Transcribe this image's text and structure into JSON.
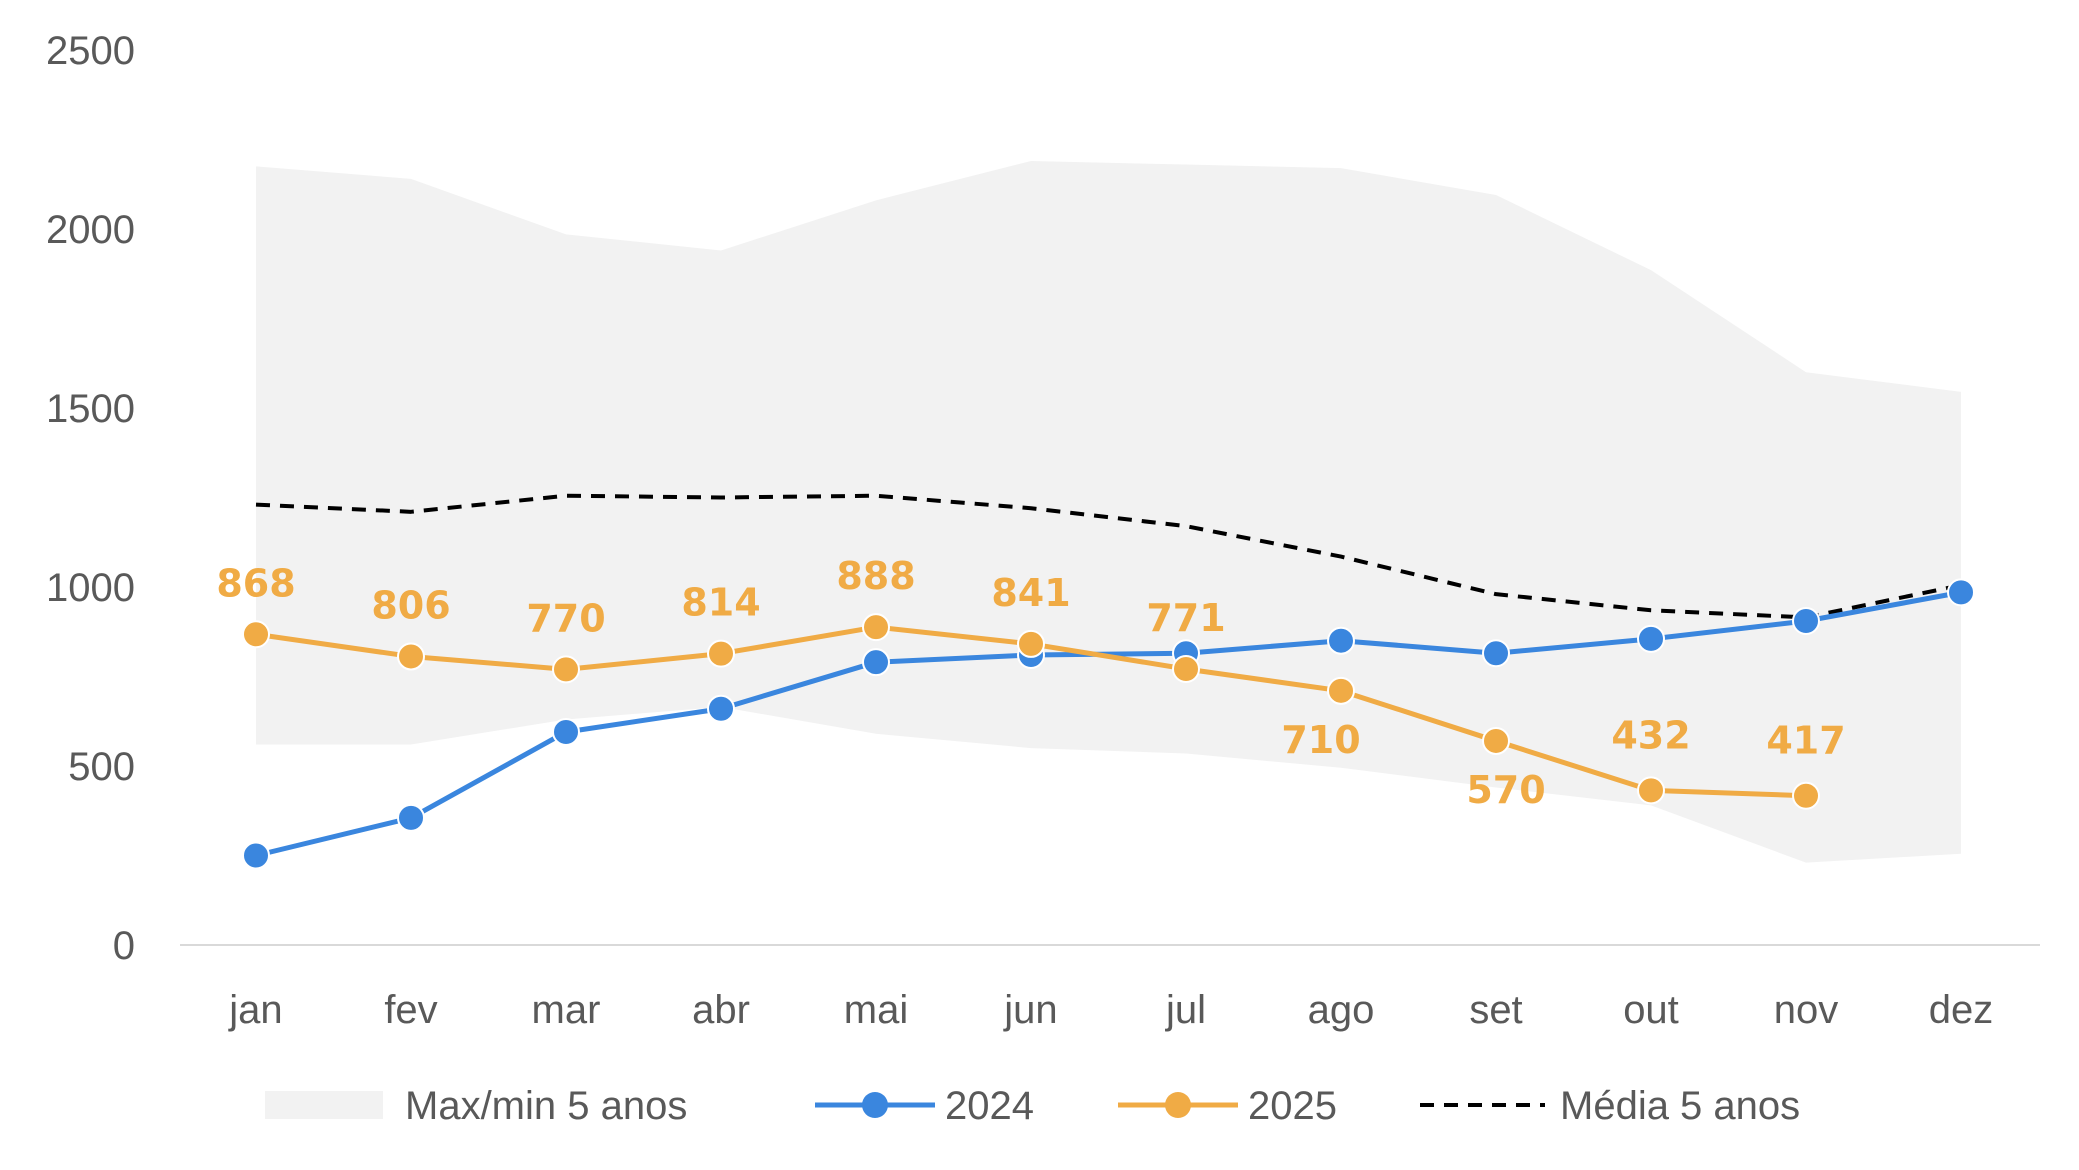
{
  "chart_data": {
    "type": "line",
    "title": "",
    "xlabel": "",
    "ylabel": "",
    "ylim": [
      0,
      2500
    ],
    "yticks": [
      0,
      500,
      1000,
      1500,
      2000,
      2500
    ],
    "grid": false,
    "legend_position": "bottom",
    "categories": [
      "jan",
      "fev",
      "mar",
      "abr",
      "mai",
      "jun",
      "jul",
      "ago",
      "set",
      "out",
      "nov",
      "dez"
    ],
    "band": {
      "name": "Max/min 5 anos",
      "color": "#F2F2F2",
      "max": [
        2175,
        2140,
        1985,
        1940,
        2080,
        2190,
        2180,
        2170,
        2095,
        1885,
        1600,
        1545
      ],
      "min": [
        560,
        560,
        630,
        665,
        590,
        550,
        535,
        495,
        440,
        390,
        230,
        255
      ]
    },
    "series": [
      {
        "name": "2024",
        "color": "#3A86DE",
        "style": "line-markers",
        "values": [
          250,
          355,
          595,
          660,
          790,
          810,
          815,
          850,
          815,
          855,
          905,
          985
        ]
      },
      {
        "name": "2025",
        "color": "#F0AB45",
        "style": "line-markers",
        "values": [
          868,
          806,
          770,
          814,
          888,
          841,
          771,
          710,
          570,
          432,
          417,
          null
        ],
        "data_labels": [
          "868",
          "806",
          "770",
          "814",
          "888",
          "841",
          "771",
          "710",
          "570",
          "432",
          "417"
        ]
      },
      {
        "name": "Média 5 anos",
        "color": "#000000",
        "style": "dashed",
        "values": [
          1230,
          1210,
          1255,
          1250,
          1255,
          1220,
          1170,
          1085,
          980,
          935,
          915,
          1005
        ]
      }
    ]
  }
}
